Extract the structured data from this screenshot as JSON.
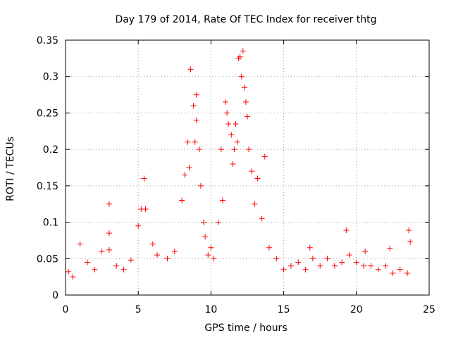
{
  "chart_data": {
    "type": "scatter",
    "title": "Day 179 of 2014, Rate Of TEC Index for receiver thtg",
    "xlabel": "GPS time / hours",
    "ylabel": "ROTI / TECUs",
    "xlim": [
      0,
      25
    ],
    "ylim": [
      0,
      0.35
    ],
    "xticks": [
      0,
      5,
      10,
      15,
      20,
      25
    ],
    "xtick_labels": [
      "0",
      "5",
      "10",
      "15",
      "20",
      "25"
    ],
    "yticks": [
      0,
      0.05,
      0.1,
      0.15,
      0.2,
      0.25,
      0.3,
      0.35
    ],
    "ytick_labels": [
      "0",
      "0.05",
      "0.1",
      "0.15",
      "0.2",
      "0.25",
      "0.3",
      "0.35"
    ],
    "grid": true,
    "marker": "+",
    "series": [
      {
        "name": "ROTI",
        "color": "#ff0000",
        "x": [
          0.2,
          0.5,
          1.0,
          1.5,
          2.0,
          2.5,
          3.0,
          3.0,
          3.0,
          3.5,
          4.0,
          4.5,
          5.0,
          5.2,
          5.4,
          5.5,
          6.0,
          6.3,
          7.0,
          7.5,
          8.0,
          8.2,
          8.4,
          8.5,
          8.6,
          8.8,
          8.9,
          9.0,
          9.0,
          9.2,
          9.3,
          9.5,
          9.6,
          9.8,
          10.0,
          10.2,
          10.5,
          10.7,
          10.8,
          11.0,
          11.1,
          11.2,
          11.4,
          11.5,
          11.6,
          11.7,
          11.8,
          11.9,
          12.0,
          12.1,
          12.2,
          12.3,
          12.4,
          12.5,
          12.6,
          12.8,
          13.0,
          13.2,
          13.5,
          13.7,
          14.0,
          14.5,
          15.0,
          15.5,
          16.0,
          16.5,
          16.8,
          17.0,
          17.5,
          18.0,
          18.5,
          19.0,
          19.3,
          19.5,
          20.0,
          20.5,
          20.6,
          21.0,
          21.5,
          22.0,
          22.3,
          22.5,
          23.0,
          23.5,
          23.6,
          23.7
        ],
        "y": [
          0.032,
          0.025,
          0.07,
          0.045,
          0.035,
          0.06,
          0.125,
          0.085,
          0.062,
          0.04,
          0.035,
          0.048,
          0.095,
          0.118,
          0.16,
          0.118,
          0.07,
          0.055,
          0.05,
          0.06,
          0.13,
          0.165,
          0.21,
          0.175,
          0.31,
          0.26,
          0.21,
          0.275,
          0.24,
          0.2,
          0.15,
          0.1,
          0.08,
          0.055,
          0.065,
          0.05,
          0.1,
          0.2,
          0.13,
          0.265,
          0.25,
          0.235,
          0.22,
          0.18,
          0.2,
          0.235,
          0.21,
          0.325,
          0.327,
          0.3,
          0.335,
          0.285,
          0.265,
          0.245,
          0.2,
          0.17,
          0.125,
          0.16,
          0.105,
          0.19,
          0.065,
          0.05,
          0.035,
          0.04,
          0.045,
          0.035,
          0.065,
          0.05,
          0.04,
          0.05,
          0.04,
          0.045,
          0.089,
          0.055,
          0.045,
          0.04,
          0.06,
          0.04,
          0.035,
          0.04,
          0.064,
          0.03,
          0.035,
          0.03,
          0.089,
          0.073
        ]
      }
    ]
  }
}
